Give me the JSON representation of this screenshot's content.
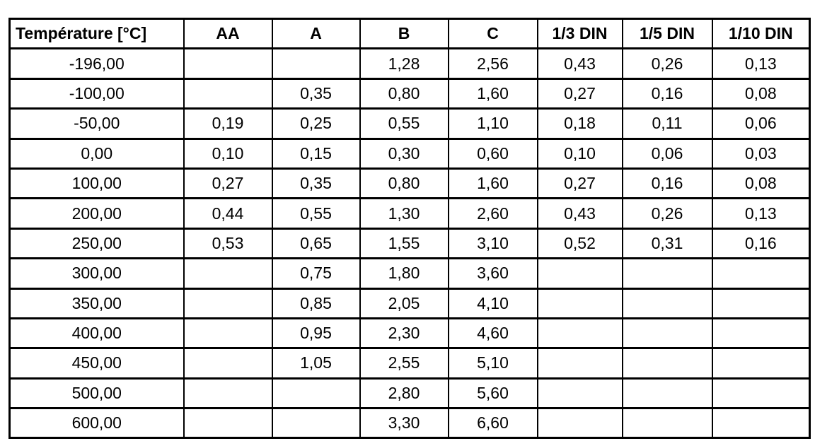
{
  "table": {
    "name": "rtd-tolerance-classes-table",
    "columns": [
      "Température [°C]",
      "AA",
      "A",
      "B",
      "C",
      "1/3 DIN",
      "1/5 DIN",
      "1/10 DIN"
    ],
    "rows": [
      [
        "-196,00",
        "",
        "",
        "1,28",
        "2,56",
        "0,43",
        "0,26",
        "0,13"
      ],
      [
        "-100,00",
        "",
        "0,35",
        "0,80",
        "1,60",
        "0,27",
        "0,16",
        "0,08"
      ],
      [
        "-50,00",
        "0,19",
        "0,25",
        "0,55",
        "1,10",
        "0,18",
        "0,11",
        "0,06"
      ],
      [
        "0,00",
        "0,10",
        "0,15",
        "0,30",
        "0,60",
        "0,10",
        "0,06",
        "0,03"
      ],
      [
        "100,00",
        "0,27",
        "0,35",
        "0,80",
        "1,60",
        "0,27",
        "0,16",
        "0,08"
      ],
      [
        "200,00",
        "0,44",
        "0,55",
        "1,30",
        "2,60",
        "0,43",
        "0,26",
        "0,13"
      ],
      [
        "250,00",
        "0,53",
        "0,65",
        "1,55",
        "3,10",
        "0,52",
        "0,31",
        "0,16"
      ],
      [
        "300,00",
        "",
        "0,75",
        "1,80",
        "3,60",
        "",
        "",
        ""
      ],
      [
        "350,00",
        "",
        "0,85",
        "2,05",
        "4,10",
        "",
        "",
        ""
      ],
      [
        "400,00",
        "",
        "0,95",
        "2,30",
        "4,60",
        "",
        "",
        ""
      ],
      [
        "450,00",
        "",
        "1,05",
        "2,55",
        "5,10",
        "",
        "",
        ""
      ],
      [
        "500,00",
        "",
        "",
        "2,80",
        "5,60",
        "",
        "",
        ""
      ],
      [
        "600,00",
        "",
        "",
        "3,30",
        "6,60",
        "",
        "",
        ""
      ]
    ],
    "colors": {
      "border": "#000000",
      "text": "#000000",
      "background": "#ffffff"
    }
  }
}
